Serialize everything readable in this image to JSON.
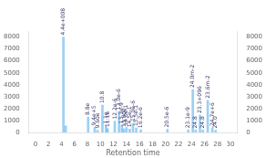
{
  "chart_data": {
    "type": "bar",
    "x": [
      4.3,
      4.65,
      8.1,
      9.1,
      9.55,
      10.3,
      10.85,
      11.1,
      12.2,
      12.85,
      13.3,
      13.6,
      14.0,
      14.5,
      15.0,
      15.5,
      16.2,
      20.3,
      23.5,
      24.2,
      24.65,
      25.3,
      25.75,
      26.5,
      27.2,
      27.7
    ],
    "values": [
      8000,
      550,
      1300,
      420,
      190,
      2300,
      560,
      310,
      950,
      1750,
      600,
      300,
      410,
      280,
      760,
      380,
      220,
      260,
      210,
      3600,
      195,
      1450,
      195,
      2700,
      380,
      185
    ],
    "xlabel": "Retention time",
    "xlim": [
      0,
      30
    ],
    "xticks": [
      0,
      2,
      4,
      6,
      8,
      10,
      12,
      14,
      16,
      18,
      20,
      22,
      24,
      26,
      28,
      30
    ],
    "ylim": [
      0,
      8500
    ],
    "yticks": [
      0,
      1000,
      2000,
      3000,
      4000,
      5000,
      6000,
      7000,
      8000
    ],
    "y2lim": [
      0,
      8500
    ],
    "y2ticks": [
      0,
      1000,
      2000,
      3000,
      4000,
      5000,
      6000,
      7000,
      8000
    ],
    "grid": false,
    "annotations": [
      {
        "x": 4.3,
        "y": 8000,
        "text": "4.4e+008"
      },
      {
        "x": 8.1,
        "y": 1300,
        "text": "8.8e"
      },
      {
        "x": 9.1,
        "y": 420,
        "text": "9.4e+5"
      },
      {
        "x": 9.55,
        "y": 190,
        "text": "9.60e"
      },
      {
        "x": 10.3,
        "y": 2300,
        "text": "10.8"
      },
      {
        "x": 10.85,
        "y": 560,
        "text": "1.1e"
      },
      {
        "x": 11.1,
        "y": 310,
        "text": "11.1e"
      },
      {
        "x": 12.2,
        "y": 950,
        "text": "12.2e-6"
      },
      {
        "x": 12.85,
        "y": 1750,
        "text": "13.0e-6"
      },
      {
        "x": 13.3,
        "y": 600,
        "text": "13.3e-9"
      },
      {
        "x": 13.6,
        "y": 300,
        "text": "13.60e"
      },
      {
        "x": 14.0,
        "y": 410,
        "text": "14.0e-1"
      },
      {
        "x": 14.5,
        "y": 280,
        "text": "14.5e-1"
      },
      {
        "x": 15.0,
        "y": 760,
        "text": "15.0e-6"
      },
      {
        "x": 15.5,
        "y": 380,
        "text": "15.5e-1"
      },
      {
        "x": 16.2,
        "y": 220,
        "text": "16.2e-6"
      },
      {
        "x": 20.3,
        "y": 260,
        "text": "20.5e-6"
      },
      {
        "x": 23.5,
        "y": 210,
        "text": "23.1e-9"
      },
      {
        "x": 24.2,
        "y": 3600,
        "text": "24.0m-2"
      },
      {
        "x": 24.65,
        "y": 195,
        "text": "24.8"
      },
      {
        "x": 25.3,
        "y": 1450,
        "text": "23.3+096"
      },
      {
        "x": 25.75,
        "y": 195,
        "text": "24.8"
      },
      {
        "x": 26.5,
        "y": 2700,
        "text": "23.6m-2"
      },
      {
        "x": 27.2,
        "y": 380,
        "text": "24.7e+6"
      },
      {
        "x": 27.7,
        "y": 185,
        "text": "24.0"
      }
    ]
  }
}
